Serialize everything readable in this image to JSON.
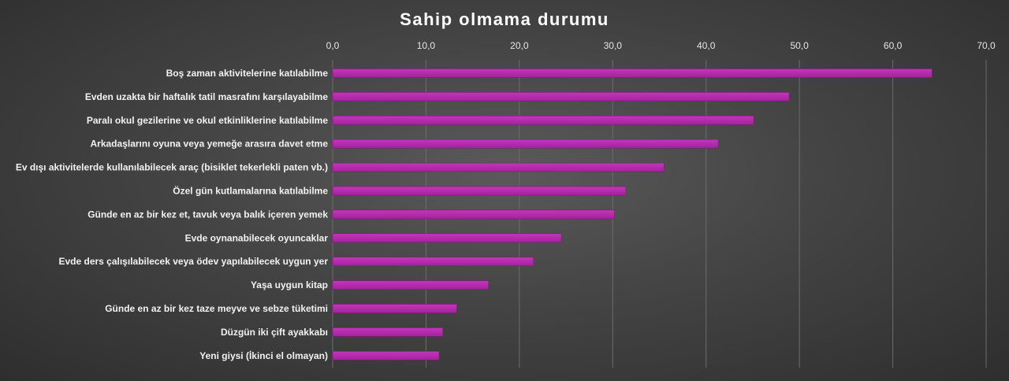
{
  "colors": {
    "bar": "#a3229c",
    "bar_highlight": "#c436bc",
    "background": "#444444"
  },
  "chart_data": {
    "type": "bar",
    "orientation": "horizontal",
    "title": "Sahip olmama durumu",
    "xlim": [
      0,
      70
    ],
    "xticks": [
      "0,0",
      "10,0",
      "20,0",
      "30,0",
      "40,0",
      "50,0",
      "60,0",
      "70,0"
    ],
    "grid": true,
    "axis_position": "top",
    "categories": [
      "Boş zaman aktivitelerine katılabilme",
      "Evden uzakta bir haftalık tatil masrafını karşılayabilme",
      "Paralı okul gezilerine ve okul etkinliklerine katılabilme",
      "Arkadaşlarını oyuna veya yemeğe arasıra davet etme",
      "Ev dışı aktivitelerde kullanılabilecek araç (bisiklet tekerlekli paten vb.)",
      "Özel gün kutlamalarına katılabilme",
      "Günde en az bir kez et, tavuk veya balık içeren yemek",
      "Evde oynanabilecek oyuncaklar",
      "Evde ders çalışılabilecek veya ödev yapılabilecek uygun yer",
      "Yaşa uygun kitap",
      "Günde en az bir kez taze meyve ve sebze tüketimi",
      "Düzgün iki çift ayakkabı",
      "Yeni giysi (İkinci el olmayan)"
    ],
    "values": [
      64.2,
      48.9,
      45.1,
      41.3,
      35.5,
      31.4,
      30.2,
      24.5,
      21.5,
      16.7,
      13.3,
      11.8,
      11.4
    ]
  }
}
